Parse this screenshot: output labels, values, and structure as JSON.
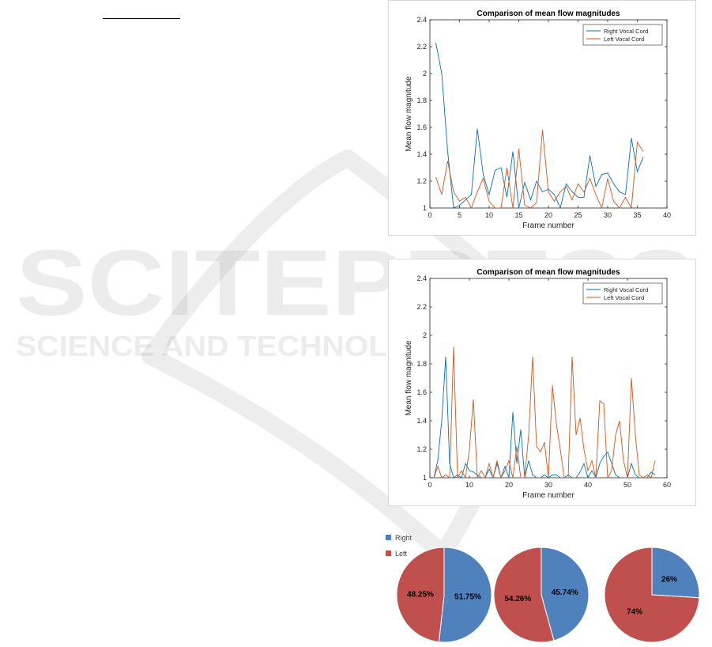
{
  "watermark": {
    "title": "SCITEPRESS",
    "subtitle": "SCIENCE AND TECHNOLOGY PUBLICATIONS"
  },
  "colors": {
    "right_line": "#0072bd",
    "left_line": "#d95319",
    "pie_right": "#4f81bd",
    "pie_left": "#c0504d"
  },
  "chart_data": [
    {
      "type": "line",
      "title": "Comparison of mean flow magnitudes",
      "xlabel": "Frame number",
      "ylabel": "Mean flow magnitude",
      "xlim": [
        0,
        40
      ],
      "ylim": [
        1,
        2.4
      ],
      "xticks": [
        "0",
        "5",
        "10",
        "15",
        "20",
        "25",
        "30",
        "35",
        "40"
      ],
      "yticks": [
        "1",
        "1.2",
        "1.4",
        "1.6",
        "1.8",
        "2",
        "2.2",
        "2.4"
      ],
      "legend_position": "top-right",
      "series": [
        {
          "name": "Right Vocal Cord",
          "color_key": "right_line",
          "x": [
            1,
            2,
            3,
            4,
            5,
            6,
            7,
            8,
            9,
            10,
            11,
            12,
            13,
            14,
            15,
            16,
            17,
            18,
            19,
            20,
            21,
            22,
            23,
            24,
            25,
            26,
            27,
            28,
            29,
            30,
            31,
            32,
            33,
            34,
            35,
            36
          ],
          "y": [
            2.23,
            2.0,
            1.42,
            1.0,
            1.02,
            1.06,
            1.1,
            1.59,
            1.25,
            1.1,
            1.28,
            1.3,
            1.08,
            1.42,
            1.0,
            1.19,
            1.06,
            1.2,
            1.12,
            1.14,
            1.1,
            1.0,
            1.18,
            1.12,
            1.08,
            1.08,
            1.39,
            1.16,
            1.25,
            1.26,
            1.18,
            1.12,
            1.1,
            1.52,
            1.27,
            1.38
          ]
        },
        {
          "name": "Left Vocal Cord",
          "color_key": "left_line",
          "x": [
            1,
            2,
            3,
            4,
            5,
            6,
            7,
            8,
            9,
            10,
            11,
            12,
            13,
            14,
            15,
            16,
            17,
            18,
            19,
            20,
            21,
            22,
            23,
            24,
            25,
            26,
            27,
            28,
            29,
            30,
            31,
            32,
            33,
            34,
            35,
            36
          ],
          "y": [
            1.23,
            1.1,
            1.35,
            1.12,
            1.05,
            1.08,
            1.0,
            1.12,
            1.22,
            1.05,
            1.0,
            1.0,
            1.3,
            1.0,
            1.44,
            1.02,
            1.0,
            1.04,
            1.58,
            1.12,
            1.05,
            1.12,
            1.16,
            1.06,
            1.18,
            1.12,
            1.22,
            1.1,
            1.0,
            1.22,
            1.05,
            1.0,
            1.08,
            1.0,
            1.49,
            1.42
          ]
        }
      ]
    },
    {
      "type": "line",
      "title": "Comparison of mean flow magnitudes",
      "xlabel": "Frame number",
      "ylabel": "Mean flow magnitude",
      "xlim": [
        0,
        60
      ],
      "ylim": [
        1,
        2.4
      ],
      "xticks": [
        "0",
        "10",
        "20",
        "30",
        "40",
        "50",
        "60"
      ],
      "yticks": [
        "1",
        "1.2",
        "1.4",
        "1.6",
        "1.8",
        "2",
        "2.2",
        "2.4"
      ],
      "legend_position": "top-right",
      "series": [
        {
          "name": "Right Vocal Cord",
          "color_key": "right_line",
          "x": [
            1,
            2,
            3,
            4,
            5,
            6,
            7,
            8,
            9,
            10,
            11,
            12,
            13,
            14,
            15,
            16,
            17,
            18,
            19,
            20,
            21,
            22,
            23,
            24,
            25,
            26,
            27,
            28,
            29,
            30,
            31,
            32,
            33,
            34,
            35,
            36,
            37,
            38,
            39,
            40,
            41,
            42,
            43,
            44,
            45,
            46,
            47,
            48,
            49,
            50,
            51,
            52,
            53,
            54,
            55,
            56,
            57
          ],
          "y": [
            1.0,
            1.12,
            1.4,
            1.85,
            1.1,
            1.0,
            1.02,
            1.0,
            1.1,
            1.05,
            1.04,
            1.02,
            1.0,
            1.0,
            1.06,
            1.0,
            1.1,
            1.0,
            1.08,
            1.0,
            1.46,
            1.1,
            1.34,
            1.0,
            1.12,
            1.02,
            1.0,
            1.0,
            1.02,
            1.0,
            1.02,
            1.02,
            1.0,
            1.0,
            1.02,
            1.0,
            1.0,
            1.04,
            1.1,
            1.0,
            1.05,
            1.0,
            1.1,
            1.15,
            1.18,
            1.1,
            1.02,
            1.0,
            1.0,
            1.0,
            1.1,
            1.02,
            1.0,
            1.0,
            1.0,
            1.04,
            1.02
          ]
        },
        {
          "name": "Left Vocal Cord",
          "color_key": "left_line",
          "x": [
            1,
            2,
            3,
            4,
            5,
            6,
            7,
            8,
            9,
            10,
            11,
            12,
            13,
            14,
            15,
            16,
            17,
            18,
            19,
            20,
            21,
            22,
            23,
            24,
            25,
            26,
            27,
            28,
            29,
            30,
            31,
            32,
            33,
            34,
            35,
            36,
            37,
            38,
            39,
            40,
            41,
            42,
            43,
            44,
            45,
            46,
            47,
            48,
            49,
            50,
            51,
            52,
            53,
            54,
            55,
            56,
            57
          ],
          "y": [
            1.0,
            1.08,
            1.0,
            1.02,
            1.0,
            1.92,
            1.0,
            1.05,
            1.0,
            1.2,
            1.55,
            1.0,
            1.05,
            1.0,
            1.1,
            1.0,
            1.12,
            1.0,
            1.05,
            1.12,
            1.0,
            1.22,
            1.0,
            1.0,
            1.3,
            1.85,
            1.22,
            1.18,
            1.25,
            1.0,
            1.65,
            1.38,
            1.2,
            1.0,
            1.0,
            1.85,
            1.3,
            1.42,
            1.2,
            1.05,
            1.12,
            1.0,
            1.54,
            1.52,
            1.0,
            1.05,
            1.3,
            1.4,
            1.12,
            1.0,
            1.7,
            1.3,
            1.02,
            1.0,
            1.02,
            1.0,
            1.12
          ]
        }
      ]
    },
    {
      "type": "pie",
      "legend": [
        {
          "label": "Right",
          "color_key": "pie_right"
        },
        {
          "label": "Left",
          "color_key": "pie_left"
        }
      ],
      "legend_position": "top-left",
      "pies": [
        {
          "slices": [
            {
              "name": "Right",
              "value": 51.75,
              "label": "51.75%",
              "color_key": "pie_right"
            },
            {
              "name": "Left",
              "value": 48.25,
              "label": "48.25%",
              "color_key": "pie_left"
            }
          ]
        },
        {
          "slices": [
            {
              "name": "Right",
              "value": 45.74,
              "label": "45.74%",
              "color_key": "pie_right"
            },
            {
              "name": "Left",
              "value": 54.26,
              "label": "54.26%",
              "color_key": "pie_left"
            }
          ]
        },
        {
          "slices": [
            {
              "name": "Right",
              "value": 26,
              "label": "26%",
              "color_key": "pie_right"
            },
            {
              "name": "Left",
              "value": 74,
              "label": "74%",
              "color_key": "pie_left"
            }
          ]
        }
      ]
    }
  ]
}
